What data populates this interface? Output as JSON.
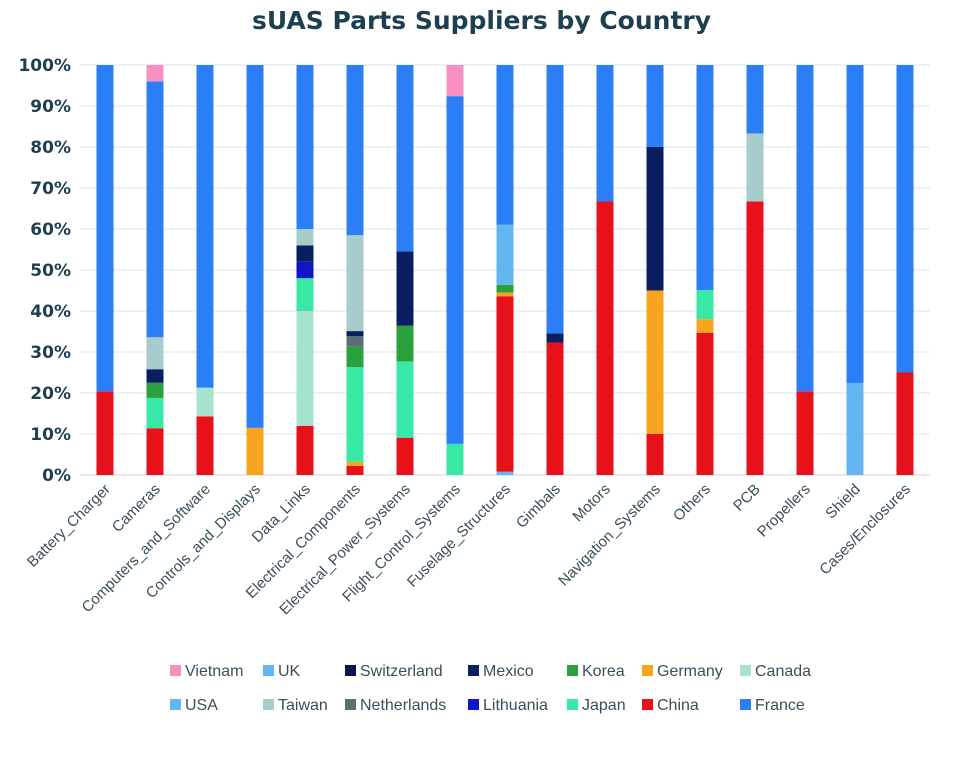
{
  "chart_data": {
    "type": "bar",
    "stacked": true,
    "title": "sUAS Parts Suppliers by Country",
    "xlabel": "",
    "ylabel": "",
    "ylim": [
      0,
      100
    ],
    "y_ticks": [
      "0%",
      "10%",
      "20%",
      "30%",
      "40%",
      "50%",
      "60%",
      "70%",
      "80%",
      "90%",
      "100%"
    ],
    "grid": "horizontal",
    "legend_position": "bottom",
    "categories": [
      "Battery_Charger",
      "Cameras",
      "Computers_and_Software",
      "Controls_and_Displays",
      "Data_Links",
      "Electrical_Components",
      "Electrical_Power_Systems",
      "Flight_Control_Systems",
      "Fuselage_Structures",
      "Gimbals",
      "Motors",
      "Navigation_Systems",
      "Others",
      "PCB",
      "Propellers",
      "Shield",
      "Cases/Enclosures"
    ],
    "series": [
      {
        "name": "USA",
        "color": "#63b6ef",
        "values": [
          0,
          0,
          0,
          0,
          0,
          0,
          0,
          0,
          0.8,
          0,
          0,
          0,
          0,
          0,
          0,
          0,
          0
        ]
      },
      {
        "name": "China",
        "color": "#e8111a",
        "values": [
          20.4,
          11.4,
          14.3,
          0,
          12,
          2.2,
          9.1,
          0,
          42.8,
          32.3,
          66.7,
          10,
          34.7,
          66.7,
          20.4,
          0,
          25
        ]
      },
      {
        "name": "Canada",
        "color": "#a6e3cd",
        "values": [
          0,
          0,
          7,
          0,
          28,
          0,
          0,
          0,
          0,
          0,
          0,
          0,
          0,
          0,
          0,
          0,
          0
        ]
      },
      {
        "name": "Germany",
        "color": "#f7a51c",
        "values": [
          0,
          0,
          0,
          11.5,
          0,
          1,
          0,
          0,
          0.9,
          0,
          0,
          35,
          3.3,
          0,
          0,
          0,
          0
        ]
      },
      {
        "name": "Japan",
        "color": "#3ae8a6",
        "values": [
          0,
          7.4,
          0,
          0,
          8,
          23.1,
          18.6,
          7.6,
          0,
          0,
          0,
          0,
          7.1,
          0,
          0,
          0,
          0
        ]
      },
      {
        "name": "Korea",
        "color": "#2aa13c",
        "values": [
          0,
          3.7,
          0,
          0,
          0,
          5,
          8.7,
          0,
          1.9,
          0,
          0,
          0,
          0,
          0,
          0,
          0,
          0
        ]
      },
      {
        "name": "Netherlands",
        "color": "#5a6e76",
        "values": [
          0,
          0,
          0,
          0,
          0,
          2.6,
          0,
          0,
          0,
          0,
          0,
          0,
          0,
          0,
          0,
          0,
          0
        ]
      },
      {
        "name": "Lithuania",
        "color": "#1016c4",
        "values": [
          0,
          0,
          0,
          0,
          4,
          0,
          0,
          0,
          0,
          0,
          0,
          0,
          0,
          0,
          0,
          0,
          0
        ]
      },
      {
        "name": "Mexico",
        "color": "#0b1e60",
        "values": [
          0,
          3.3,
          0,
          0,
          4,
          1.2,
          18.1,
          0,
          0,
          2.2,
          0,
          35,
          0,
          0,
          0,
          0,
          0
        ]
      },
      {
        "name": "Switzerland",
        "color": "#0a1650",
        "values": [
          0,
          0,
          0,
          0,
          0,
          0,
          0,
          0,
          0,
          0,
          0,
          0,
          0,
          0,
          0,
          0,
          0
        ]
      },
      {
        "name": "Taiwan",
        "color": "#a6cdcb",
        "values": [
          0,
          7.8,
          0,
          0,
          4,
          23.4,
          0,
          0,
          0,
          0,
          0,
          0,
          0,
          16.6,
          0,
          0,
          0
        ]
      },
      {
        "name": "UK",
        "color": "#63b6ef",
        "values": [
          0,
          0,
          0,
          0,
          0,
          0,
          0,
          0,
          14.7,
          0,
          0,
          0,
          0,
          0,
          0,
          22.4,
          0
        ]
      },
      {
        "name": "France",
        "color": "#2b7ef5",
        "values": [
          79.6,
          62.4,
          78.7,
          88.5,
          40,
          41.5,
          45.5,
          84.8,
          38.9,
          65.5,
          33.3,
          20,
          54.9,
          16.7,
          79.6,
          77.6,
          75
        ]
      },
      {
        "name": "Vietnam",
        "color": "#f790c0",
        "values": [
          0,
          4,
          0,
          0,
          0,
          0,
          0,
          7.6,
          0,
          0,
          0,
          0,
          0,
          0,
          0,
          0,
          0
        ]
      }
    ],
    "legend": [
      {
        "name": "Vietnam",
        "color": "#f790c0"
      },
      {
        "name": "UK",
        "color": "#63b6ef"
      },
      {
        "name": "Switzerland",
        "color": "#0a1650"
      },
      {
        "name": "Mexico",
        "color": "#0b1e60"
      },
      {
        "name": "Korea",
        "color": "#2aa13c"
      },
      {
        "name": "Germany",
        "color": "#f7a51c"
      },
      {
        "name": "Canada",
        "color": "#a6e3cd"
      },
      {
        "name": "USA",
        "color": "#63b6ef"
      },
      {
        "name": "Taiwan",
        "color": "#a6cdcb"
      },
      {
        "name": "Netherlands",
        "color": "#5a6e76"
      },
      {
        "name": "Lithuania",
        "color": "#1016c4"
      },
      {
        "name": "Japan",
        "color": "#3ae8a6"
      },
      {
        "name": "China",
        "color": "#e8111a"
      },
      {
        "name": "France",
        "color": "#2b7ef5"
      }
    ]
  }
}
